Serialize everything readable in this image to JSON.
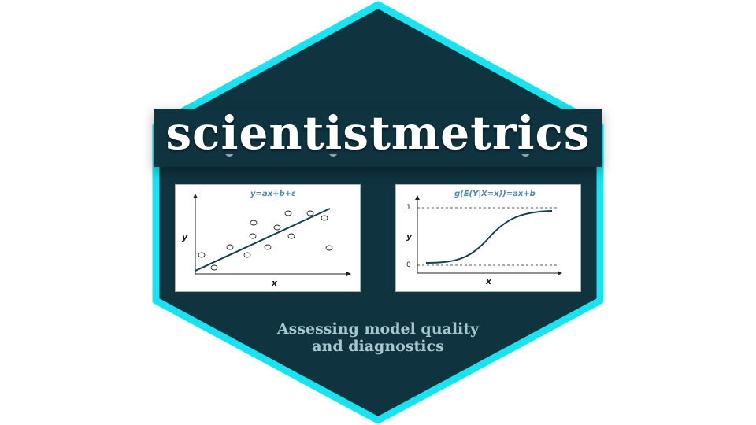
{
  "brand": {
    "title": "scientistmetrics",
    "subtitle_line1": "Assessing model quality",
    "subtitle_line2": "and diagnostics"
  },
  "colors": {
    "hex_fill": "#0f3440",
    "hex_border": "#19e3f0",
    "subtitle": "#a8c7cc",
    "equation": "#4a8aa8"
  },
  "linear_panel": {
    "equation": "y=ax+b+ε",
    "xlabel": "x",
    "ylabel": "y"
  },
  "logistic_panel": {
    "equation": "g(E(Y|X=x))=ax+b",
    "xlabel": "x",
    "ylabel": "y",
    "tick_top": "1",
    "tick_bottom": "0"
  }
}
